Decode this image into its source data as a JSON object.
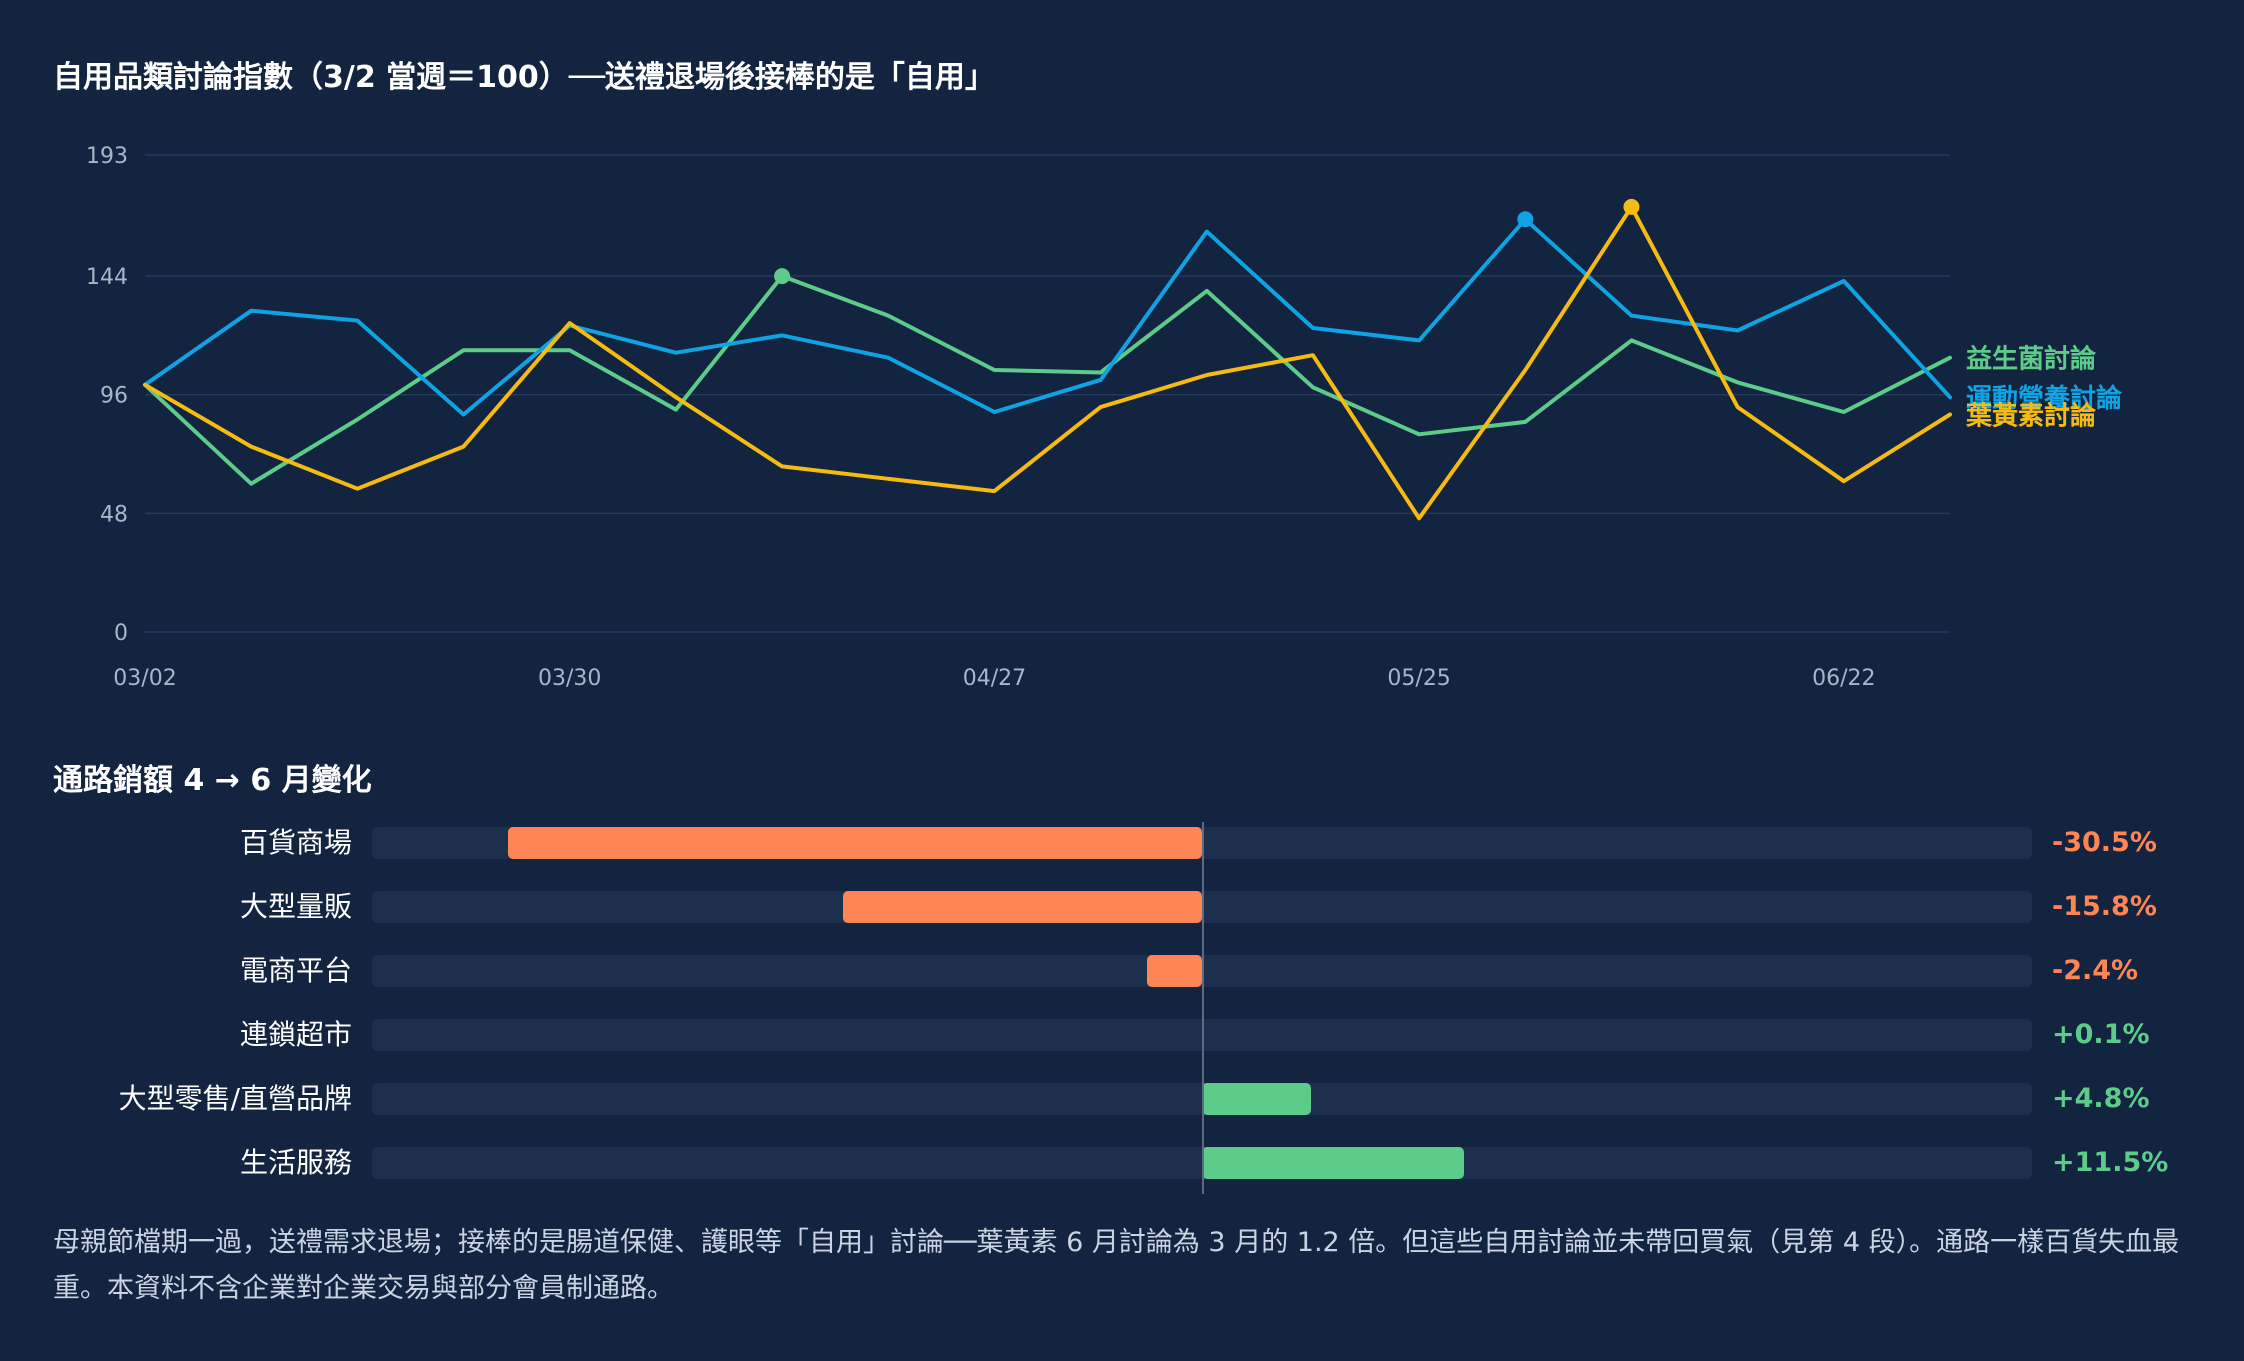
{
  "title": "自用品類討論指數（3/2 當週＝100）──送禮退場後接棒的是「自用」",
  "chart_data": [
    {
      "type": "line",
      "title": "自用品類討論指數（3/2 當週＝100）──送禮退場後接棒的是「自用」",
      "x": [
        "03/02",
        "03/09",
        "03/16",
        "03/23",
        "03/30",
        "04/06",
        "04/13",
        "04/20",
        "04/27",
        "05/04",
        "05/11",
        "05/18",
        "05/25",
        "06/01",
        "06/08",
        "06/15",
        "06/22",
        "06/29"
      ],
      "x_ticks": [
        "03/02",
        "03/30",
        "04/27",
        "05/25",
        "06/22"
      ],
      "y_ticks": [
        0,
        48,
        96,
        144,
        193
      ],
      "ylim": [
        0,
        193
      ],
      "grid": true,
      "series": [
        {
          "name": "益生菌討論",
          "color": "#5dcb8a",
          "values": [
            100,
            60,
            86,
            114,
            114,
            90,
            144,
            128,
            106,
            105,
            138,
            99,
            80,
            85,
            118,
            101,
            89,
            111
          ],
          "peak_index": 6
        },
        {
          "name": "運動營養討論",
          "color": "#0fa3e3",
          "values": [
            100,
            130,
            126,
            88,
            124,
            113,
            120,
            111,
            89,
            102,
            162,
            123,
            118,
            167,
            128,
            122,
            142,
            95
          ],
          "peak_index": 13
        },
        {
          "name": "葉黃素討論",
          "color": "#f5bb12",
          "values": [
            100,
            75,
            58,
            75,
            125,
            95,
            67,
            62,
            57,
            91,
            104,
            112,
            46,
            106,
            172,
            91,
            61,
            88
          ],
          "peak_index": 14
        }
      ]
    },
    {
      "type": "bar",
      "title": "通路銷額 4 → 6 月變化",
      "categories": [
        "百貨商場",
        "大型量販",
        "電商平台",
        "連鎖超市",
        "大型零售/直營品牌",
        "生活服務"
      ],
      "values": [
        -30.5,
        -15.8,
        -2.4,
        0.1,
        4.8,
        11.5
      ],
      "value_labels": [
        "-30.5%",
        "-15.8%",
        "-2.4%",
        "+0.1%",
        "+4.8%",
        "+11.5%"
      ],
      "xlim": [
        -36.5,
        36.5
      ],
      "negative_color": "#ff8555",
      "positive_color": "#5dcb8a"
    }
  ],
  "footnote": "母親節檔期一過，送禮需求退場；接棒的是腸道保健、護眼等「自用」討論──葉黃素 6 月討論為 3 月的 1.2 倍。但這些自用討論並未帶回買氣（見第 4 段）。通路一樣百貨失血最重。本資料不含企業對企業交易與部分會員制通路。",
  "colors": {
    "background": "#12243f",
    "grid": "#243a5a",
    "axis_text": "#a9b6c8",
    "bar_track": "#1c2f4c"
  }
}
